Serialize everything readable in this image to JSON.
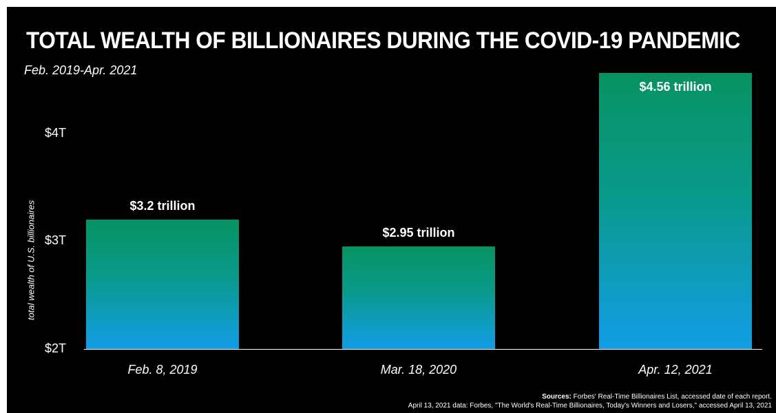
{
  "chart_data": {
    "type": "bar",
    "title": "TOTAL WEALTH OF BILLIONAIRES DURING THE COVID-19 PANDEMIC",
    "subtitle": "Feb. 2019-Apr. 2021",
    "ylabel": "total wealth of U.S. billionaires",
    "ylim": [
      2,
      4.56
    ],
    "yticks": [
      {
        "value": 2,
        "label": "$2T"
      },
      {
        "value": 3,
        "label": "$3T"
      },
      {
        "value": 4,
        "label": "$4T"
      }
    ],
    "categories": [
      "Feb. 8, 2019",
      "Mar. 18, 2020",
      "Apr. 12, 2021"
    ],
    "values": [
      3.2,
      2.95,
      4.56
    ],
    "data_labels": [
      "$3.2 trillion",
      "$2.95 trillion",
      "$4.56 trillion"
    ],
    "grid": false,
    "legend": "none",
    "colors": {
      "bar_top": "#079262",
      "bar_bottom": "#129de6",
      "background": "#000000",
      "text": "#ffffff"
    }
  },
  "sources": {
    "label": "Sources:",
    "line1": "Forbes' Real-Time Billionaires List, accessed date of each report.",
    "line2": "April 13, 2021 data: Forbes, \"The World's Real-Time Billionaires, Today's Winners and Losers,\" accessed April 13, 2021"
  }
}
